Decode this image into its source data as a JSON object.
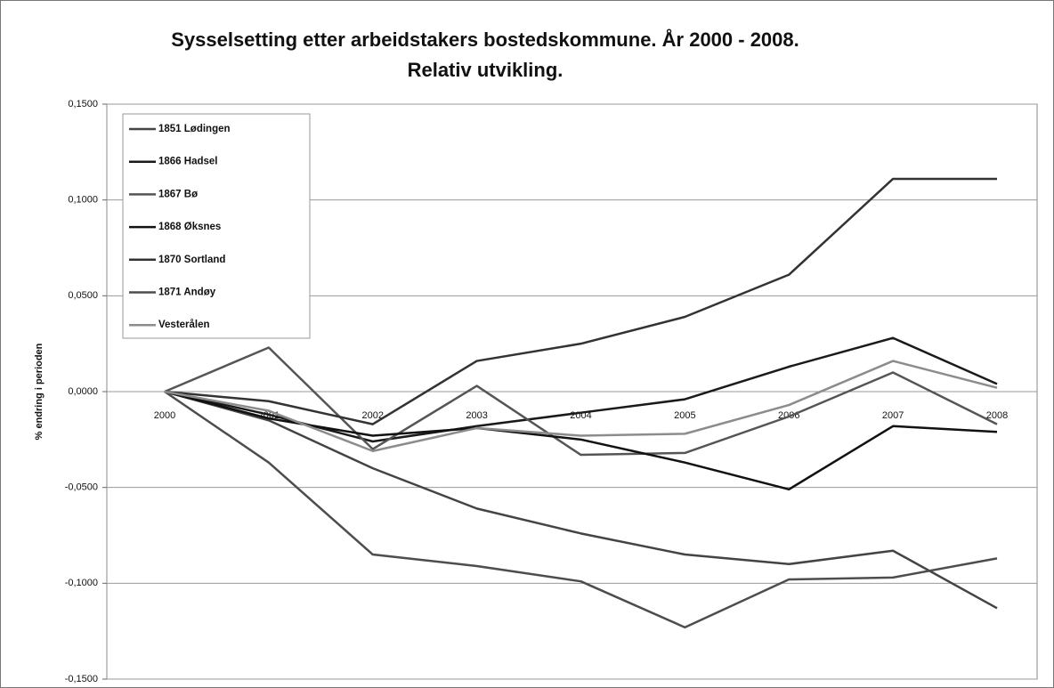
{
  "chart_data": {
    "type": "line",
    "title": "Sysselsetting etter arbeidstakers bostedskommune.  År 2000 - 2008.",
    "subtitle": "Relativ utvikling.",
    "y_label": "% endring i perioden",
    "categories": [
      "2000",
      "2001",
      "2002",
      "2003",
      "2004",
      "2005",
      "2006",
      "2007",
      "2008"
    ],
    "series": [
      {
        "name": "1851 Lødingen",
        "color": "#444444",
        "values": [
          0,
          -0.015,
          -0.04,
          -0.061,
          -0.074,
          -0.085,
          -0.09,
          -0.083,
          -0.113
        ]
      },
      {
        "name": "1866 Hadsel",
        "color": "#1a1a1a",
        "values": [
          0,
          -0.012,
          -0.026,
          -0.018,
          -0.011,
          -0.004,
          0.013,
          0.028,
          0.004
        ]
      },
      {
        "name": "1867 Bø",
        "color": "#555555",
        "values": [
          0,
          0.023,
          -0.03,
          0.003,
          -0.033,
          -0.032,
          -0.013,
          0.01,
          -0.017
        ]
      },
      {
        "name": "1868 Øksnes",
        "color": "#111111",
        "values": [
          0,
          -0.014,
          -0.023,
          -0.019,
          -0.025,
          -0.037,
          -0.051,
          -0.018,
          -0.021
        ]
      },
      {
        "name": "1870 Sortland",
        "color": "#333333",
        "values": [
          0,
          -0.005,
          -0.017,
          0.016,
          0.025,
          0.039,
          0.061,
          0.111,
          0.111
        ]
      },
      {
        "name": "1871 Andøy",
        "color": "#4d4d4d",
        "values": [
          0,
          -0.037,
          -0.085,
          -0.091,
          -0.099,
          -0.123,
          -0.098,
          -0.097,
          -0.087
        ]
      },
      {
        "name": "Vesterålen",
        "color": "#8c8c8c",
        "values": [
          0,
          -0.01,
          -0.031,
          -0.019,
          -0.023,
          -0.022,
          -0.007,
          0.016,
          0.002
        ]
      }
    ],
    "ylim": [
      -0.15,
      0.15
    ],
    "yticks": [
      {
        "value": -0.15,
        "label": "-0,1500"
      },
      {
        "value": -0.1,
        "label": "-0,1000"
      },
      {
        "value": -0.05,
        "label": "-0,0500"
      },
      {
        "value": 0,
        "label": "0,0000"
      },
      {
        "value": 0.05,
        "label": "0,0500"
      },
      {
        "value": 0.1,
        "label": "0,1000"
      },
      {
        "value": 0.15,
        "label": "0,1500"
      }
    ],
    "grid": true,
    "legend": "upper left"
  }
}
